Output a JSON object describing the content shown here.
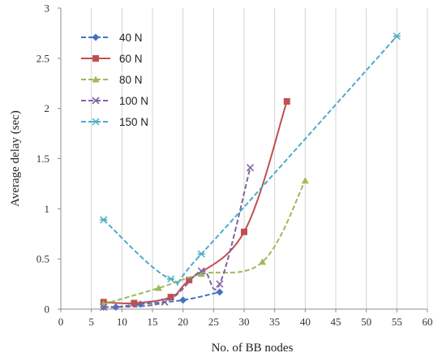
{
  "chart_data": {
    "type": "line",
    "title": "",
    "xlabel": "No. of BB nodes",
    "ylabel": "Average delay (sec)",
    "xlim": [
      0,
      60
    ],
    "ylim": [
      0,
      3
    ],
    "x_ticks": [
      "0",
      "5",
      "10",
      "15",
      "20",
      "25",
      "30",
      "35",
      "40",
      "45",
      "50",
      "55",
      "60"
    ],
    "y_ticks": [
      "0",
      "0.5",
      "1",
      "1.5",
      "2",
      "2.5",
      "3"
    ],
    "grid": "vertical",
    "legend_position": "top-left",
    "series": [
      {
        "name": "40 N",
        "color": "#4472c4",
        "marker": "diamond",
        "dash": true,
        "x": [
          7,
          9,
          13,
          20,
          26
        ],
        "y": [
          0.02,
          0.02,
          0.05,
          0.09,
          0.17
        ]
      },
      {
        "name": "60 N",
        "color": "#c0504d",
        "marker": "square",
        "dash": false,
        "x": [
          7,
          12,
          18,
          21,
          30,
          37
        ],
        "y": [
          0.07,
          0.06,
          0.12,
          0.29,
          0.77,
          2.07
        ]
      },
      {
        "name": "80 N",
        "color": "#9bbb59",
        "marker": "triangle",
        "dash": true,
        "x": [
          7,
          16,
          23,
          33,
          40
        ],
        "y": [
          0.05,
          0.21,
          0.35,
          0.47,
          1.28
        ]
      },
      {
        "name": "100 N",
        "color": "#8064a2",
        "marker": "x",
        "dash": true,
        "x": [
          7,
          17,
          23,
          26,
          31
        ],
        "y": [
          0.02,
          0.07,
          0.38,
          0.25,
          1.41
        ]
      },
      {
        "name": "150 N",
        "color": "#4bacc6",
        "marker": "star",
        "dash": true,
        "x": [
          7,
          18,
          23,
          55
        ],
        "y": [
          0.89,
          0.3,
          0.55,
          2.72
        ]
      }
    ]
  }
}
